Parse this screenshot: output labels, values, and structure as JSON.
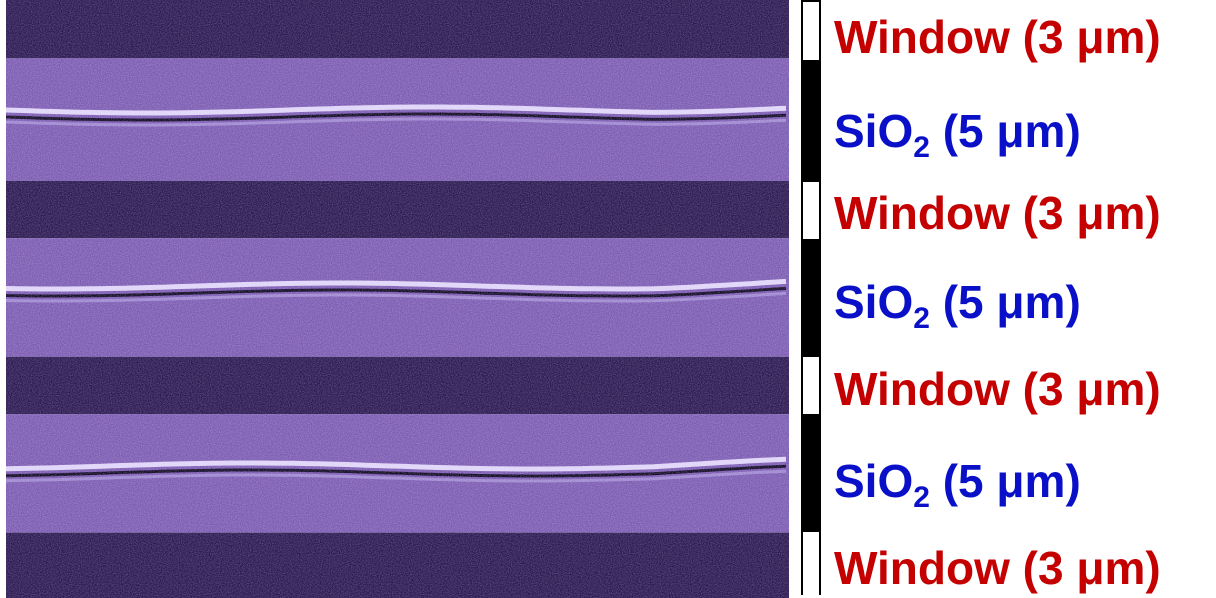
{
  "colors": {
    "window": "#c40000",
    "sio2": "#0a10c8",
    "oxide_band": "#7c5cb2",
    "window_band": "#2a1850",
    "ridge": "#ece3ff"
  },
  "layers": [
    {
      "material": "Window",
      "subscript": "",
      "size": " (3 μm)",
      "type": "window"
    },
    {
      "material": "SiO",
      "subscript": "2",
      "size": " (5 μm)",
      "type": "sio2"
    },
    {
      "material": "Window",
      "subscript": "",
      "size": " (3 μm)",
      "type": "window"
    },
    {
      "material": "SiO",
      "subscript": "2",
      "size": " (5 μm)",
      "type": "sio2"
    },
    {
      "material": "Window",
      "subscript": "",
      "size": " (3 μm)",
      "type": "window"
    },
    {
      "material": "SiO",
      "subscript": "2",
      "size": " (5 μm)",
      "type": "sio2"
    },
    {
      "material": "Window",
      "subscript": "",
      "size": " (3 μm)",
      "type": "window"
    }
  ]
}
